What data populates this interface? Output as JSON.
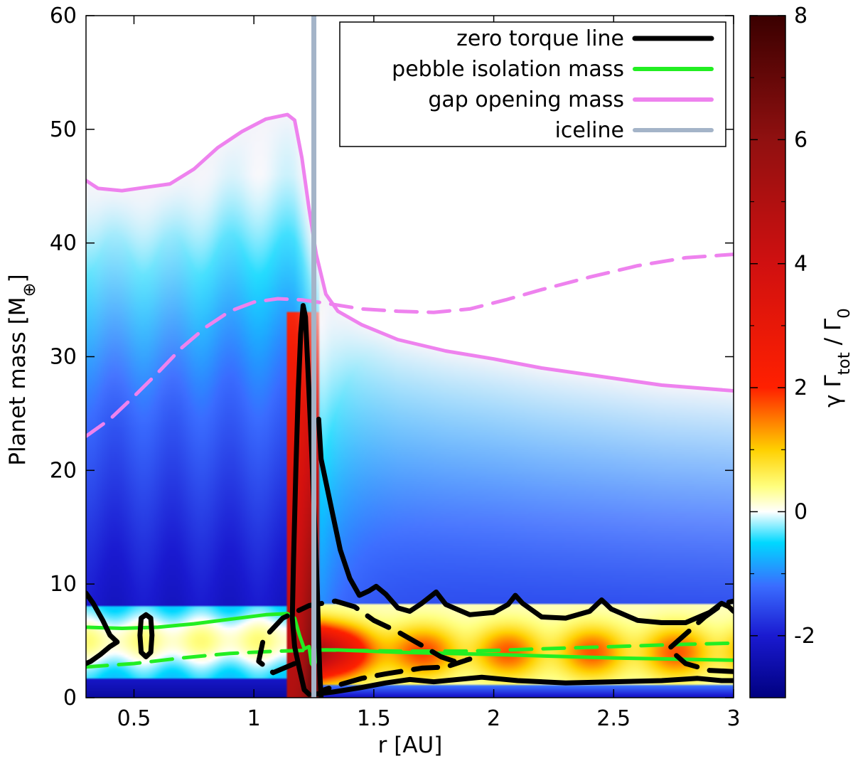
{
  "chart_data": {
    "type": "heatmap",
    "title": "",
    "xlabel": "r [AU]",
    "ylabel": "Planet mass [M",
    "ylabel_subscript": "⊕",
    "xlim": [
      0.3,
      3.0
    ],
    "ylim": [
      0,
      60
    ],
    "xticks": [
      0.5,
      1,
      1.5,
      2,
      2.5,
      3
    ],
    "xtick_labels": [
      "0.5",
      "1",
      "1.5",
      "2",
      "2.5",
      "3"
    ],
    "yticks": [
      0,
      10,
      20,
      30,
      40,
      50,
      60
    ],
    "ytick_labels": [
      "0",
      "10",
      "20",
      "30",
      "40",
      "50",
      "60"
    ],
    "colorbar": {
      "label_parts": [
        "γ Γ",
        "tot",
        " / Γ",
        "0"
      ],
      "range": [
        -3,
        8
      ],
      "ticks": [
        -2,
        0,
        2,
        4,
        6,
        8
      ],
      "tick_labels": [
        "-2",
        "0",
        "2",
        "4",
        "6",
        "8"
      ],
      "stops": [
        {
          "value": -3.0,
          "color": "#000080"
        },
        {
          "value": -2.0,
          "color": "#1a1ad0"
        },
        {
          "value": -1.2,
          "color": "#3a6cff"
        },
        {
          "value": -0.5,
          "color": "#00d8ff"
        },
        {
          "value": 0.0,
          "color": "#ffffff"
        },
        {
          "value": 0.4,
          "color": "#ffff80"
        },
        {
          "value": 1.0,
          "color": "#ffd000"
        },
        {
          "value": 2.0,
          "color": "#ff2000"
        },
        {
          "value": 4.0,
          "color": "#d01010"
        },
        {
          "value": 6.0,
          "color": "#901010"
        },
        {
          "value": 8.0,
          "color": "#3a0000"
        }
      ]
    },
    "legend": {
      "position": "top-right",
      "entries": [
        {
          "label": "zero torque line",
          "color": "#000000",
          "style": "solid"
        },
        {
          "label": "pebble isolation mass",
          "color": "#22ee22",
          "style": "solid"
        },
        {
          "label": "gap opening mass",
          "color": "#ee82ee",
          "style": "solid"
        },
        {
          "label": "iceline",
          "color": "#a4b4c8",
          "style": "solid"
        }
      ]
    },
    "iceline_r": 1.25,
    "series": [
      {
        "name": "gap opening mass (solid)",
        "color": "#ee82ee",
        "style": "solid",
        "points": [
          [
            0.3,
            45.5
          ],
          [
            0.35,
            44.8
          ],
          [
            0.45,
            44.6
          ],
          [
            0.55,
            44.9
          ],
          [
            0.65,
            45.2
          ],
          [
            0.75,
            46.5
          ],
          [
            0.85,
            48.4
          ],
          [
            0.95,
            49.8
          ],
          [
            1.05,
            50.9
          ],
          [
            1.14,
            51.3
          ],
          [
            1.17,
            50.8
          ],
          [
            1.2,
            47.5
          ],
          [
            1.23,
            43.0
          ],
          [
            1.26,
            39.0
          ],
          [
            1.3,
            35.5
          ],
          [
            1.35,
            34.0
          ],
          [
            1.45,
            32.8
          ],
          [
            1.6,
            31.5
          ],
          [
            1.8,
            30.5
          ],
          [
            2.0,
            29.8
          ],
          [
            2.2,
            29.0
          ],
          [
            2.5,
            28.1
          ],
          [
            2.7,
            27.5
          ],
          [
            3.0,
            27.0
          ]
        ]
      },
      {
        "name": "gap opening mass (dashed)",
        "color": "#ee82ee",
        "style": "dashed",
        "points": [
          [
            0.3,
            23.0
          ],
          [
            0.4,
            24.5
          ],
          [
            0.5,
            26.5
          ],
          [
            0.6,
            28.6
          ],
          [
            0.7,
            30.8
          ],
          [
            0.8,
            32.6
          ],
          [
            0.9,
            34.0
          ],
          [
            1.0,
            34.8
          ],
          [
            1.1,
            35.1
          ],
          [
            1.2,
            35.0
          ],
          [
            1.3,
            34.7
          ],
          [
            1.45,
            34.2
          ],
          [
            1.6,
            34.0
          ],
          [
            1.75,
            33.9
          ],
          [
            1.9,
            34.2
          ],
          [
            2.05,
            35.0
          ],
          [
            2.2,
            35.9
          ],
          [
            2.4,
            37.0
          ],
          [
            2.6,
            38.0
          ],
          [
            2.8,
            38.7
          ],
          [
            3.0,
            39.0
          ]
        ]
      },
      {
        "name": "pebble isolation mass (solid)",
        "color": "#22ee22",
        "style": "solid",
        "points": [
          [
            0.3,
            6.2
          ],
          [
            0.45,
            6.1
          ],
          [
            0.6,
            6.2
          ],
          [
            0.75,
            6.5
          ],
          [
            0.9,
            6.9
          ],
          [
            1.05,
            7.3
          ],
          [
            1.14,
            7.4
          ],
          [
            1.17,
            7.0
          ],
          [
            1.19,
            5.5
          ],
          [
            1.21,
            4.3
          ],
          [
            1.23,
            4.5
          ],
          [
            1.24,
            3.0
          ],
          [
            1.25,
            2.7
          ],
          [
            1.27,
            4.2
          ],
          [
            1.35,
            4.2
          ],
          [
            1.6,
            4.0
          ],
          [
            2.0,
            3.8
          ],
          [
            2.5,
            3.5
          ],
          [
            3.0,
            3.3
          ]
        ]
      },
      {
        "name": "pebble isolation mass (dashed)",
        "color": "#22ee22",
        "style": "dashed",
        "points": [
          [
            0.3,
            2.7
          ],
          [
            0.5,
            3.0
          ],
          [
            0.7,
            3.5
          ],
          [
            0.9,
            3.9
          ],
          [
            1.1,
            4.1
          ],
          [
            1.3,
            4.2
          ],
          [
            1.6,
            4.1
          ],
          [
            1.9,
            4.1
          ],
          [
            2.2,
            4.3
          ],
          [
            2.5,
            4.5
          ],
          [
            2.8,
            4.7
          ],
          [
            3.0,
            4.8
          ]
        ]
      },
      {
        "name": "zero torque line (solid, lower)",
        "color": "#000000",
        "style": "solid",
        "points": [
          [
            1.25,
            0.3
          ],
          [
            1.33,
            0.5
          ],
          [
            1.45,
            0.9
          ],
          [
            1.55,
            1.3
          ],
          [
            1.65,
            1.6
          ],
          [
            1.75,
            1.4
          ],
          [
            1.85,
            1.6
          ],
          [
            1.95,
            1.8
          ],
          [
            2.1,
            1.5
          ],
          [
            2.3,
            1.3
          ],
          [
            2.5,
            1.4
          ],
          [
            2.7,
            1.5
          ],
          [
            2.85,
            1.7
          ],
          [
            2.95,
            1.5
          ],
          [
            3.0,
            1.5
          ]
        ]
      },
      {
        "name": "zero torque line (solid, main)",
        "color": "#000000",
        "style": "solid",
        "points": [
          [
            1.23,
            0.3
          ],
          [
            1.21,
            0.7
          ],
          [
            1.19,
            2.5
          ],
          [
            1.17,
            4.5
          ],
          [
            1.16,
            7.0
          ],
          [
            1.165,
            12.0
          ],
          [
            1.175,
            20.0
          ],
          [
            1.185,
            27.0
          ],
          [
            1.195,
            32.0
          ],
          [
            1.205,
            34.5
          ],
          [
            1.215,
            33.5
          ],
          [
            1.225,
            29.0
          ],
          [
            1.24,
            22.0
          ],
          [
            1.25,
            17.0
          ],
          [
            1.26,
            12.0
          ],
          [
            1.265,
            9.0
          ],
          [
            1.27,
            5.0
          ],
          [
            1.275,
            2.0
          ],
          [
            1.28,
            0.0
          ]
        ]
      },
      {
        "name": "zero torque line (solid, upper)",
        "color": "#000000",
        "style": "solid",
        "points": [
          [
            1.27,
            24.5
          ],
          [
            1.28,
            21.0
          ],
          [
            1.3,
            19.0
          ],
          [
            1.33,
            16.0
          ],
          [
            1.36,
            13.0
          ],
          [
            1.4,
            10.5
          ],
          [
            1.44,
            9.0
          ],
          [
            1.48,
            9.4
          ],
          [
            1.51,
            9.8
          ],
          [
            1.55,
            9.1
          ],
          [
            1.6,
            7.9
          ],
          [
            1.65,
            7.6
          ],
          [
            1.7,
            8.3
          ],
          [
            1.76,
            9.3
          ],
          [
            1.8,
            8.2
          ],
          [
            1.9,
            7.3
          ],
          [
            2.0,
            7.5
          ],
          [
            2.06,
            8.2
          ],
          [
            2.09,
            9.0
          ],
          [
            2.12,
            8.3
          ],
          [
            2.2,
            7.1
          ],
          [
            2.3,
            7.0
          ],
          [
            2.4,
            7.6
          ],
          [
            2.45,
            8.6
          ],
          [
            2.49,
            7.8
          ],
          [
            2.6,
            6.8
          ],
          [
            2.7,
            6.6
          ],
          [
            2.8,
            6.6
          ],
          [
            2.9,
            7.5
          ],
          [
            2.95,
            8.3
          ],
          [
            2.98,
            8.0
          ],
          [
            3.0,
            7.6
          ]
        ]
      },
      {
        "name": "zero torque line (left loop)",
        "color": "#000000",
        "style": "solid",
        "points": [
          [
            0.3,
            9.2
          ],
          [
            0.33,
            8.3
          ],
          [
            0.37,
            6.8
          ],
          [
            0.4,
            5.5
          ],
          [
            0.43,
            4.9
          ],
          [
            0.4,
            4.5
          ],
          [
            0.36,
            3.8
          ],
          [
            0.32,
            3.2
          ],
          [
            0.3,
            3.0
          ]
        ]
      },
      {
        "name": "zero torque line (left ellipse)",
        "color": "#000000",
        "style": "solid",
        "points": [
          [
            0.55,
            7.3
          ],
          [
            0.57,
            7.0
          ],
          [
            0.575,
            5.5
          ],
          [
            0.57,
            4.0
          ],
          [
            0.55,
            3.6
          ],
          [
            0.53,
            4.0
          ],
          [
            0.525,
            5.5
          ],
          [
            0.53,
            7.0
          ],
          [
            0.55,
            7.3
          ]
        ]
      },
      {
        "name": "zero torque line (dashed, middle)",
        "color": "#000000",
        "style": "dashed",
        "points": [
          [
            1.17,
            3.0
          ],
          [
            1.08,
            2.2
          ],
          [
            1.02,
            3.2
          ],
          [
            1.04,
            5.2
          ],
          [
            1.12,
            7.0
          ],
          [
            1.23,
            8.1
          ],
          [
            1.34,
            8.5
          ],
          [
            1.42,
            8.0
          ],
          [
            1.5,
            6.8
          ],
          [
            1.6,
            5.8
          ],
          [
            1.7,
            4.6
          ],
          [
            1.78,
            3.6
          ],
          [
            1.85,
            3.1
          ],
          [
            1.9,
            3.4
          ],
          [
            1.8,
            2.7
          ],
          [
            1.7,
            2.6
          ],
          [
            1.55,
            2.1
          ],
          [
            1.45,
            1.7
          ],
          [
            1.35,
            1.1
          ],
          [
            1.28,
            0.6
          ]
        ]
      },
      {
        "name": "zero torque line (dashed, right)",
        "color": "#000000",
        "style": "dashed",
        "points": [
          [
            3.0,
            2.3
          ],
          [
            2.9,
            2.4
          ],
          [
            2.8,
            3.0
          ],
          [
            2.73,
            4.3
          ],
          [
            2.8,
            5.6
          ],
          [
            2.88,
            7.1
          ],
          [
            2.96,
            8.3
          ],
          [
            3.0,
            8.5
          ]
        ]
      }
    ]
  }
}
